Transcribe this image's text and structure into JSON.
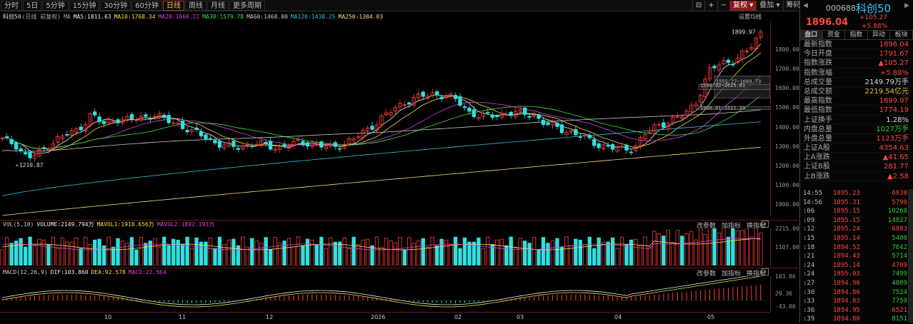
{
  "toolbar": {
    "periods": [
      "分时",
      "5日",
      "5分钟",
      "15分钟",
      "30分钟",
      "60分钟",
      "日线",
      "周线",
      "月线",
      "更多周期"
    ],
    "active_period": "日线",
    "right_items": [
      "复权",
      "叠加",
      "筹码",
      "画线",
      "显示",
      "简约"
    ],
    "period_arrow": "▾"
  },
  "legend": {
    "name": "科创50",
    "sub": "(日线 前复权)",
    "ma_label": "MA",
    "ma5": "MA5:1811.63",
    "ma10": "MA10:1768.34",
    "ma20": "MA20:1666.21",
    "ma30": "MA30:1579.78",
    "ma60": "MA60:1468.00",
    "ma120": "MA120:1438.25",
    "ma250": "MA250:1304.03",
    "settings": "设置均线"
  },
  "price_axis": [
    "1800.00",
    "1700.00",
    "1600.00",
    "1500.00",
    "1400.00",
    "1300.00",
    "1200.00",
    "1100.00",
    "1000.00"
  ],
  "annotations": {
    "high": "1899.97",
    "low": "1210.87",
    "box1": "1555.27~1669.73",
    "box2": "1598.92~1625.81",
    "box3": "1496.01~1511.39"
  },
  "vol_header": {
    "name": "VOL(5,10)",
    "volume": "VOLUME:2149.794万",
    "mavol1": "MAVOL1:1918.656万",
    "mavol2": "MAVOL2:1892.193万",
    "btns": [
      "改参数",
      "加指标",
      "换指标"
    ],
    "ticks": [
      "2215.00",
      "1107.00"
    ]
  },
  "macd_header": {
    "name": "MACD(12,26,9)",
    "dif": "DIF:103.860",
    "dea": "DEA:92.578",
    "macd": "MACD:22.564",
    "btns": [
      "改参数",
      "加指标",
      "换指标"
    ],
    "ticks": [
      "103.86",
      "29.36",
      "-43.06"
    ]
  },
  "x_axis": [
    "10",
    "11",
    "12",
    "2026",
    "02",
    "03",
    "04",
    "05"
  ],
  "quote": {
    "code": "000688",
    "name": "科创50",
    "price": "1896.04",
    "change": "+105.27",
    "change_pct": "+5.88%",
    "tabs": [
      "盘口",
      "资金",
      "指数",
      "异动",
      "板块"
    ],
    "active_tab": "盘口",
    "stats": [
      {
        "label": "最新指数",
        "value": "1896.04",
        "color": "red"
      },
      {
        "label": "今日开盘",
        "value": "1791.67",
        "color": "red"
      },
      {
        "label": "指数涨跌",
        "value": "▲105.27",
        "color": "red"
      },
      {
        "label": "指数涨幅",
        "value": "+5.88%",
        "color": "red"
      },
      {
        "label": "总成交量",
        "value": "2149.79万手",
        "color": "wht"
      },
      {
        "label": "总成交额",
        "value": "2219.54亿元",
        "color": "yel"
      },
      {
        "label": "最高指数",
        "value": "1899.97",
        "color": "red"
      },
      {
        "label": "最低指数",
        "value": "1774.19",
        "color": "red"
      },
      {
        "label": "上证换手",
        "value": "1.28%",
        "color": "wht"
      },
      {
        "label": "内盘总量",
        "value": "1027万手",
        "color": "grn"
      },
      {
        "label": "外盘总量",
        "value": "1123万手",
        "color": "red"
      },
      {
        "label": "上证A股",
        "value": "4354.63",
        "color": "red"
      },
      {
        "label": "上A涨跌",
        "value": "▲41.65",
        "color": "red"
      },
      {
        "label": "上证B股",
        "value": "281.77",
        "color": "red"
      },
      {
        "label": "上B涨跌",
        "value": "▲2.58",
        "color": "red"
      }
    ],
    "ticks": [
      {
        "t": "14:55",
        "p": "1895.23",
        "v": "6838",
        "c": "red"
      },
      {
        "t": "14:56",
        "p": "1895.31",
        "v": "5790",
        "c": "red"
      },
      {
        "t": ":06",
        "p": "1895.15",
        "v": "10268",
        "c": "grn"
      },
      {
        "t": ":09",
        "p": "1895.15",
        "v": "14027",
        "c": "grn"
      },
      {
        "t": ":12",
        "p": "1895.24",
        "v": "6883",
        "c": "red"
      },
      {
        "t": ":15",
        "p": "1895.14",
        "v": "5400",
        "c": "grn"
      },
      {
        "t": ":18",
        "p": "1894.52",
        "v": "7642",
        "c": "grn"
      },
      {
        "t": ":21",
        "p": "1894.43",
        "v": "5714",
        "c": "grn"
      },
      {
        "t": ":24",
        "p": "1895.14",
        "v": "4709",
        "c": "red"
      },
      {
        "t": ":24",
        "p": "1895.03",
        "v": "7499",
        "c": "grn"
      },
      {
        "t": ":27",
        "p": "1894.96",
        "v": "4009",
        "c": "grn"
      },
      {
        "t": ":30",
        "p": "1894.86",
        "v": "7524",
        "c": "grn"
      },
      {
        "t": ":33",
        "p": "1894.83",
        "v": "7759",
        "c": "grn"
      },
      {
        "t": ":36",
        "p": "1894.95",
        "v": "6521",
        "c": "red"
      },
      {
        "t": ":39",
        "p": "1894.80",
        "v": "8151",
        "c": "grn"
      }
    ]
  },
  "chart_data": {
    "type": "candlestick",
    "title": "科创50",
    "ylim": [
      950,
      1950
    ],
    "categories": [
      "10",
      "11",
      "12",
      "2026",
      "02",
      "03",
      "04",
      "05"
    ],
    "close_path": [
      1340,
      1320,
      1245,
      1275,
      1330,
      1365,
      1390,
      1470,
      1420,
      1450,
      1440,
      1455,
      1470,
      1440,
      1420,
      1380,
      1360,
      1320,
      1300,
      1310,
      1320,
      1310,
      1300,
      1320,
      1330,
      1310,
      1300,
      1320,
      1350,
      1400,
      1450,
      1500,
      1540,
      1560,
      1575,
      1570,
      1540,
      1480,
      1460,
      1465,
      1480,
      1475,
      1470,
      1420,
      1400,
      1380,
      1350,
      1320,
      1300,
      1290,
      1300,
      1380,
      1420,
      1440,
      1470,
      1550,
      1700,
      1740,
      1750,
      1800,
      1896
    ],
    "volume": {
      "series": [
        {
          "name": "VOLUME",
          "last": 2149.794
        },
        {
          "name": "MAVOL1",
          "last": 1918.656
        },
        {
          "name": "MAVOL2",
          "last": 1892.193
        }
      ]
    },
    "macd": {
      "dif": 103.86,
      "dea": 92.578,
      "macd": 22.564
    }
  }
}
